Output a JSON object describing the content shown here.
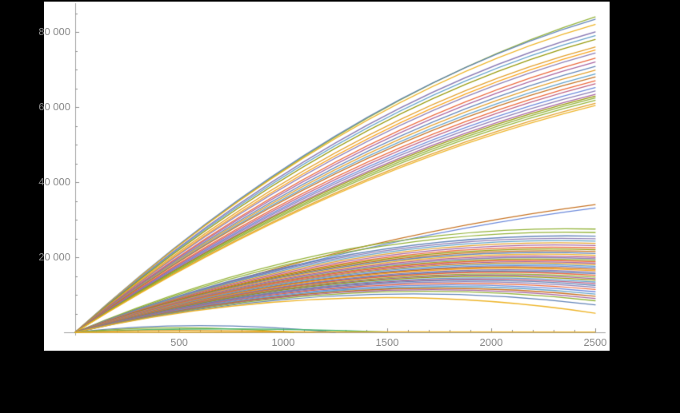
{
  "figure": {
    "background_color": "#000000",
    "plot_background_color": "#ffffff",
    "axis_color": "#a2a2a2",
    "tick_color": "#8f8f8f",
    "tick_label_color": "#878787"
  },
  "chart_data": {
    "type": "line",
    "title": "",
    "xlabel": "",
    "ylabel": "",
    "xlim": [
      0,
      2550
    ],
    "ylim": [
      0,
      88500
    ],
    "grid": false,
    "legend": "none",
    "x_ticks": {
      "major_values": [
        500,
        1000,
        1500,
        2000,
        2500
      ],
      "major_labels": [
        "500",
        "1000",
        "1500",
        "2000",
        "2500"
      ],
      "minor_step": 100
    },
    "y_ticks": {
      "major_values": [
        20000,
        40000,
        60000,
        80000
      ],
      "major_labels": [
        "20 000",
        "40 000",
        "60 000",
        "80 000"
      ],
      "minor_step": 5000
    },
    "palette": [
      "#5e81b5",
      "#e19c24",
      "#8fb032",
      "#eb6235",
      "#8778b3",
      "#c56e1a",
      "#5d9ec7",
      "#edb120",
      "#a55f9d",
      "#929600",
      "#ea5536",
      "#6685d9",
      "#f89f13",
      "#bc5b80",
      "#47b66d"
    ],
    "series_point_format": "[x_mid, y_mid, x_end, y_end, palette_index] — every trajectory starts at (0,0); curve passes through the mid and end points",
    "series": [
      [
        1250,
        52000,
        2500,
        84000,
        2
      ],
      [
        1250,
        52300,
        2500,
        83400,
        0
      ],
      [
        1250,
        51600,
        2500,
        82000,
        7
      ],
      [
        1250,
        50400,
        2500,
        80000,
        4
      ],
      [
        1250,
        49700,
        2500,
        79000,
        6
      ],
      [
        1250,
        49000,
        2500,
        78000,
        9
      ],
      [
        1250,
        47800,
        2500,
        76000,
        1
      ],
      [
        1250,
        47000,
        2500,
        75200,
        12
      ],
      [
        1250,
        46400,
        2500,
        74400,
        4
      ],
      [
        1250,
        45300,
        2500,
        73000,
        3
      ],
      [
        1250,
        44700,
        2500,
        72000,
        8
      ],
      [
        1250,
        43900,
        2500,
        70800,
        0
      ],
      [
        1250,
        43300,
        2500,
        69800,
        1
      ],
      [
        1250,
        42700,
        2500,
        68800,
        6
      ],
      [
        1250,
        42200,
        2500,
        68000,
        5
      ],
      [
        1250,
        41300,
        2500,
        67000,
        3
      ],
      [
        1250,
        40700,
        2500,
        66200,
        13
      ],
      [
        1250,
        40100,
        2500,
        65200,
        11
      ],
      [
        1250,
        39600,
        2500,
        64300,
        4
      ],
      [
        1250,
        39000,
        2500,
        63400,
        8
      ],
      [
        1250,
        38600,
        2500,
        62900,
        9
      ],
      [
        1250,
        38100,
        2500,
        62400,
        2
      ],
      [
        1250,
        37700,
        2500,
        61800,
        2
      ],
      [
        1250,
        37100,
        2500,
        61000,
        1
      ],
      [
        1250,
        36700,
        2500,
        60400,
        7
      ],
      [
        1250,
        21000,
        2500,
        34000,
        5
      ],
      [
        1250,
        20400,
        2500,
        33100,
        11
      ],
      [
        1250,
        21500,
        2500,
        27500,
        2
      ],
      [
        1250,
        20800,
        2500,
        26600,
        2
      ],
      [
        1250,
        20000,
        2500,
        25600,
        0
      ],
      [
        1250,
        19600,
        2500,
        24900,
        4
      ],
      [
        1250,
        19200,
        2500,
        24300,
        6
      ],
      [
        1250,
        18800,
        2500,
        23700,
        1
      ],
      [
        1250,
        18400,
        2500,
        23100,
        8
      ],
      [
        1250,
        18000,
        2500,
        22500,
        3
      ],
      [
        1250,
        17700,
        2500,
        22000,
        9
      ],
      [
        1250,
        17400,
        2500,
        21500,
        5
      ],
      [
        1250,
        17100,
        2500,
        21000,
        0
      ],
      [
        1250,
        16800,
        2500,
        20500,
        7
      ],
      [
        1250,
        16500,
        2500,
        20000,
        13
      ],
      [
        1250,
        16200,
        2500,
        19600,
        4
      ],
      [
        1250,
        15900,
        2500,
        19200,
        2
      ],
      [
        1250,
        15700,
        2500,
        18800,
        3
      ],
      [
        1250,
        15400,
        2500,
        18400,
        8
      ],
      [
        1250,
        15200,
        2500,
        18000,
        1
      ],
      [
        1250,
        15000,
        2500,
        17600,
        6
      ],
      [
        1250,
        14700,
        2500,
        17200,
        11
      ],
      [
        1250,
        14500,
        2500,
        16800,
        5
      ],
      [
        1250,
        14300,
        2500,
        16400,
        12
      ],
      [
        1250,
        14000,
        2500,
        16000,
        4
      ],
      [
        1250,
        13800,
        2500,
        15600,
        0
      ],
      [
        1250,
        13600,
        2500,
        15200,
        3
      ],
      [
        1250,
        13300,
        2500,
        14700,
        2
      ],
      [
        1250,
        13100,
        2500,
        14300,
        8
      ],
      [
        1250,
        12900,
        2500,
        13900,
        9
      ],
      [
        1250,
        12600,
        2500,
        13400,
        6
      ],
      [
        1250,
        12400,
        2500,
        13000,
        13
      ],
      [
        1250,
        12200,
        2500,
        12500,
        0
      ],
      [
        1250,
        12000,
        2500,
        12000,
        4
      ],
      [
        1250,
        11700,
        2500,
        11400,
        3
      ],
      [
        1250,
        11400,
        2500,
        10800,
        11
      ],
      [
        1250,
        11100,
        2500,
        10200,
        6
      ],
      [
        1250,
        10800,
        2500,
        9600,
        5
      ],
      [
        1250,
        10500,
        2500,
        9000,
        8
      ],
      [
        1250,
        10200,
        2500,
        8400,
        2
      ],
      [
        1250,
        9700,
        2500,
        7300,
        0
      ],
      [
        1250,
        9000,
        2500,
        5100,
        7
      ],
      [
        600,
        1800,
        1250,
        0,
        0
      ],
      [
        500,
        1200,
        1050,
        0,
        2
      ],
      [
        700,
        900,
        1500,
        80,
        14
      ],
      [
        500,
        520,
        1150,
        60,
        1
      ],
      [
        1250,
        140,
        2500,
        90,
        7
      ]
    ]
  }
}
